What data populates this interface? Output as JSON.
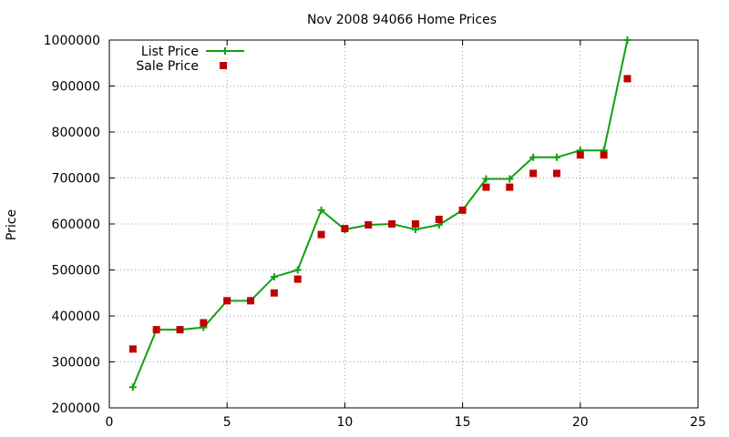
{
  "chart_data": {
    "type": "line",
    "title": "Nov 2008 94066 Home Prices",
    "xlabel": "",
    "ylabel": "Price",
    "xlim": [
      0,
      25
    ],
    "ylim": [
      200000,
      1000000
    ],
    "x_ticks": [
      0,
      5,
      10,
      15,
      20,
      25
    ],
    "y_ticks": [
      200000,
      300000,
      400000,
      500000,
      600000,
      700000,
      800000,
      900000,
      1000000
    ],
    "x_tick_labels": [
      "0",
      "5",
      "10",
      "15",
      "20",
      "25"
    ],
    "y_tick_labels": [
      "200000",
      "300000",
      "400000",
      "500000",
      "600000",
      "700000",
      "800000",
      "900000",
      "1000000"
    ],
    "grid": true,
    "legend_position": "top-left",
    "series": [
      {
        "name": "List Price",
        "style": "linespoints",
        "marker": "plus",
        "color": "#12a012",
        "x": [
          1,
          2,
          3,
          4,
          5,
          6,
          7,
          8,
          9,
          10,
          11,
          12,
          13,
          14,
          15,
          16,
          17,
          18,
          19,
          20,
          21,
          22
        ],
        "values": [
          245000,
          370000,
          370000,
          375000,
          433000,
          433000,
          485000,
          500000,
          630000,
          588000,
          598000,
          600000,
          588000,
          598000,
          630000,
          698000,
          698000,
          745000,
          745000,
          760000,
          760000,
          1000000
        ]
      },
      {
        "name": "Sale Price",
        "style": "points",
        "marker": "square",
        "color": "#c00000",
        "x": [
          1,
          2,
          3,
          4,
          5,
          6,
          7,
          8,
          9,
          10,
          11,
          12,
          13,
          14,
          15,
          16,
          17,
          18,
          19,
          20,
          21,
          22
        ],
        "values": [
          328000,
          370000,
          370000,
          385000,
          433000,
          433000,
          450000,
          480000,
          577000,
          590000,
          598000,
          600000,
          600000,
          610000,
          630000,
          680000,
          680000,
          710000,
          710000,
          750000,
          750000,
          916000
        ]
      }
    ]
  }
}
